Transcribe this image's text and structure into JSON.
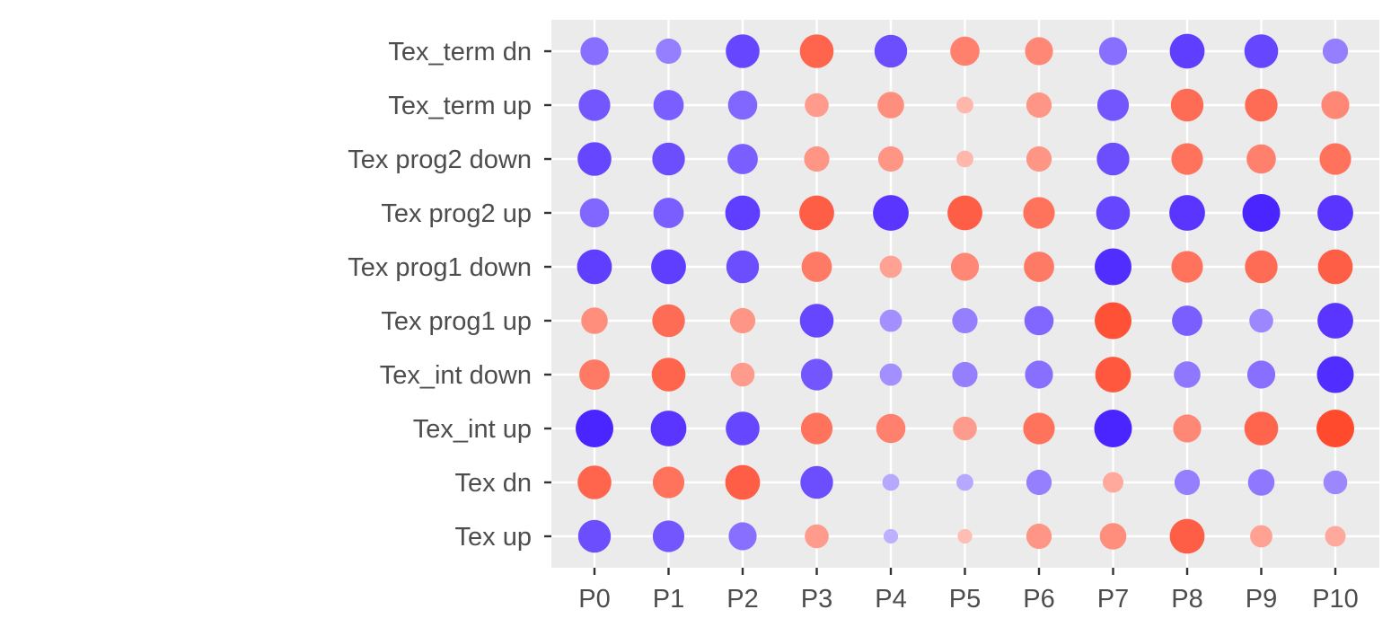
{
  "chart_data": {
    "type": "dot-matrix",
    "title": "",
    "xlabel": "",
    "ylabel": "",
    "legend": "none",
    "grid": true,
    "colors": {
      "panel_background": "#ebebeb",
      "grid": "#ffffff",
      "tick_text": "#4d4d4d",
      "tick_mark": "#333333",
      "negative": "#4b25ff",
      "positive": "#ff4a2e",
      "neutral": "#ffffff"
    },
    "x_categories": [
      "P0",
      "P1",
      "P2",
      "P3",
      "P4",
      "P5",
      "P6",
      "P7",
      "P8",
      "P9",
      "P10"
    ],
    "y_categories": [
      "Tex up",
      "Tex dn",
      "Tex_int up",
      "Tex_int down",
      "Tex prog1 up",
      "Tex prog1 down",
      "Tex prog2 up",
      "Tex prog2 down",
      "Tex_term up",
      "Tex_term dn"
    ],
    "value_note": "value = signed magnitude; negative values shown purple, positive values shown orange; dot size proportional to |value|",
    "values": [
      [
        -0.75,
        -0.7,
        -0.55,
        0.4,
        -0.15,
        0.15,
        0.45,
        0.5,
        0.85,
        0.35,
        0.3
      ],
      [
        0.8,
        0.7,
        0.85,
        -0.75,
        -0.2,
        -0.2,
        -0.45,
        0.3,
        -0.45,
        -0.5,
        -0.4
      ],
      [
        -1.0,
        -0.9,
        -0.8,
        0.7,
        0.6,
        0.4,
        0.7,
        -1.0,
        0.55,
        0.8,
        1.0
      ],
      [
        0.65,
        0.8,
        0.4,
        -0.7,
        -0.35,
        -0.45,
        -0.55,
        0.9,
        -0.5,
        -0.55,
        -0.95
      ],
      [
        0.5,
        0.75,
        0.45,
        -0.8,
        -0.35,
        -0.45,
        -0.6,
        0.95,
        -0.65,
        -0.4,
        -0.9
      ],
      [
        -0.85,
        -0.85,
        -0.75,
        0.65,
        0.35,
        0.55,
        0.65,
        -0.95,
        0.7,
        0.75,
        0.85
      ],
      [
        -0.6,
        -0.65,
        -0.85,
        0.85,
        -0.9,
        0.85,
        0.7,
        -0.8,
        -0.9,
        -1.0,
        -0.9
      ],
      [
        -0.8,
        -0.75,
        -0.65,
        0.45,
        0.45,
        0.2,
        0.45,
        -0.75,
        0.7,
        0.6,
        0.7
      ],
      [
        -0.7,
        -0.65,
        -0.6,
        0.4,
        0.5,
        0.2,
        0.45,
        -0.7,
        0.75,
        0.75,
        0.55
      ],
      [
        -0.55,
        -0.45,
        -0.8,
        0.8,
        -0.75,
        0.6,
        0.55,
        -0.55,
        -0.85,
        -0.8,
        -0.45
      ]
    ]
  }
}
